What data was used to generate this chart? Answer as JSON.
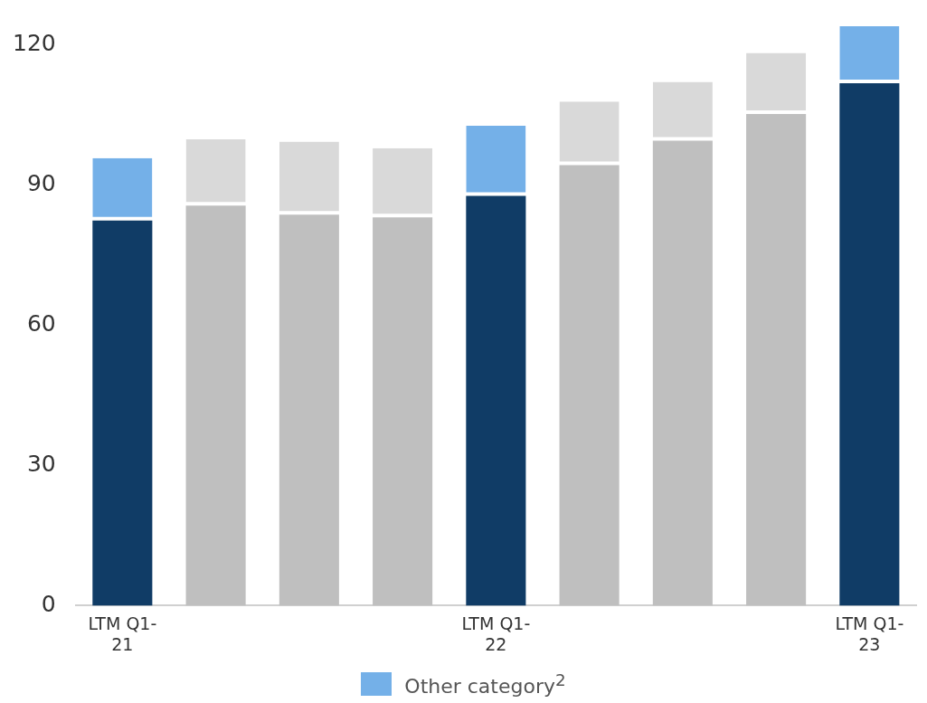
{
  "chart_data": {
    "type": "bar",
    "stacked": true,
    "categories": [
      "LTM Q1-21",
      null,
      null,
      null,
      "LTM Q1-22",
      null,
      null,
      null,
      "LTM Q1-23"
    ],
    "series": [
      {
        "colors": [
          "#103c66",
          "#bfbfbf",
          "#bfbfbf",
          "#bfbfbf",
          "#103c66",
          "#bfbfbf",
          "#bfbfbf",
          "#bfbfbf",
          "#103c66"
        ],
        "values": [
          82.4,
          85.6,
          83.7,
          83.1,
          87.7,
          94.3,
          99.5,
          105.2,
          111.8
        ]
      },
      {
        "name": "Other category$^{2}$",
        "color": "#74b0e8",
        "colors": [
          "#74b0e8",
          "#d9d9d9",
          "#d9d9d9",
          "#d9d9d9",
          "#74b0e8",
          "#d9d9d9",
          "#d9d9d9",
          "#d9d9d9",
          "#74b0e8"
        ],
        "values": [
          13.4,
          14.2,
          15.6,
          14.8,
          15.0,
          13.6,
          12.6,
          13.1,
          12.2
        ]
      }
    ],
    "ylim": [
      0,
      124
    ],
    "yticks": [
      0,
      30,
      60,
      90,
      120
    ],
    "grid": false,
    "legend": "bottom"
  }
}
